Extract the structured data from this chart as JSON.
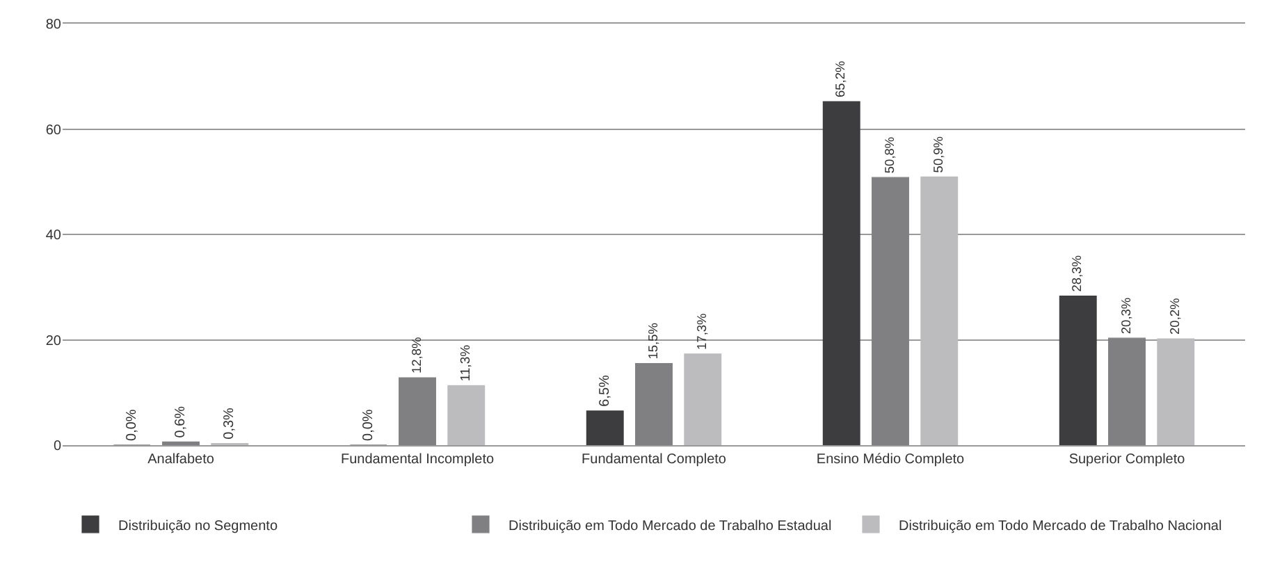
{
  "chart_data": {
    "type": "bar",
    "categories": [
      "Analfabeto",
      "Fundamental Incompleto",
      "Fundamental Completo",
      "Ensino Médio Completo",
      "Superior Completo"
    ],
    "series": [
      {
        "name": "Distribuição no Segmento",
        "color": "#3d3d3f",
        "values": [
          0.0,
          0.0,
          6.5,
          65.2,
          28.3
        ],
        "value_labels": [
          "0,0%",
          "0,0%",
          "6,5%",
          "65,2%",
          "28,3%"
        ]
      },
      {
        "name": "Distribuição em Todo Mercado de Trabalho Estadual",
        "color": "#808083",
        "values": [
          0.6,
          12.8,
          15.5,
          50.8,
          20.3
        ],
        "value_labels": [
          "0,6%",
          "12,8%",
          "15,5%",
          "50,8%",
          "20,3%"
        ]
      },
      {
        "name": "Distribuição em Todo Mercado de Trabalho Nacional",
        "color": "#bcbcbf",
        "values": [
          0.3,
          11.3,
          17.3,
          50.9,
          20.2
        ],
        "value_labels": [
          "0,3%",
          "11,3%",
          "17,3%",
          "50,9%",
          "20,2%"
        ]
      }
    ],
    "ylim": [
      0,
      80
    ],
    "yticks": [
      0,
      20,
      40,
      60,
      80
    ],
    "grid": "y",
    "legend": "bottom"
  }
}
